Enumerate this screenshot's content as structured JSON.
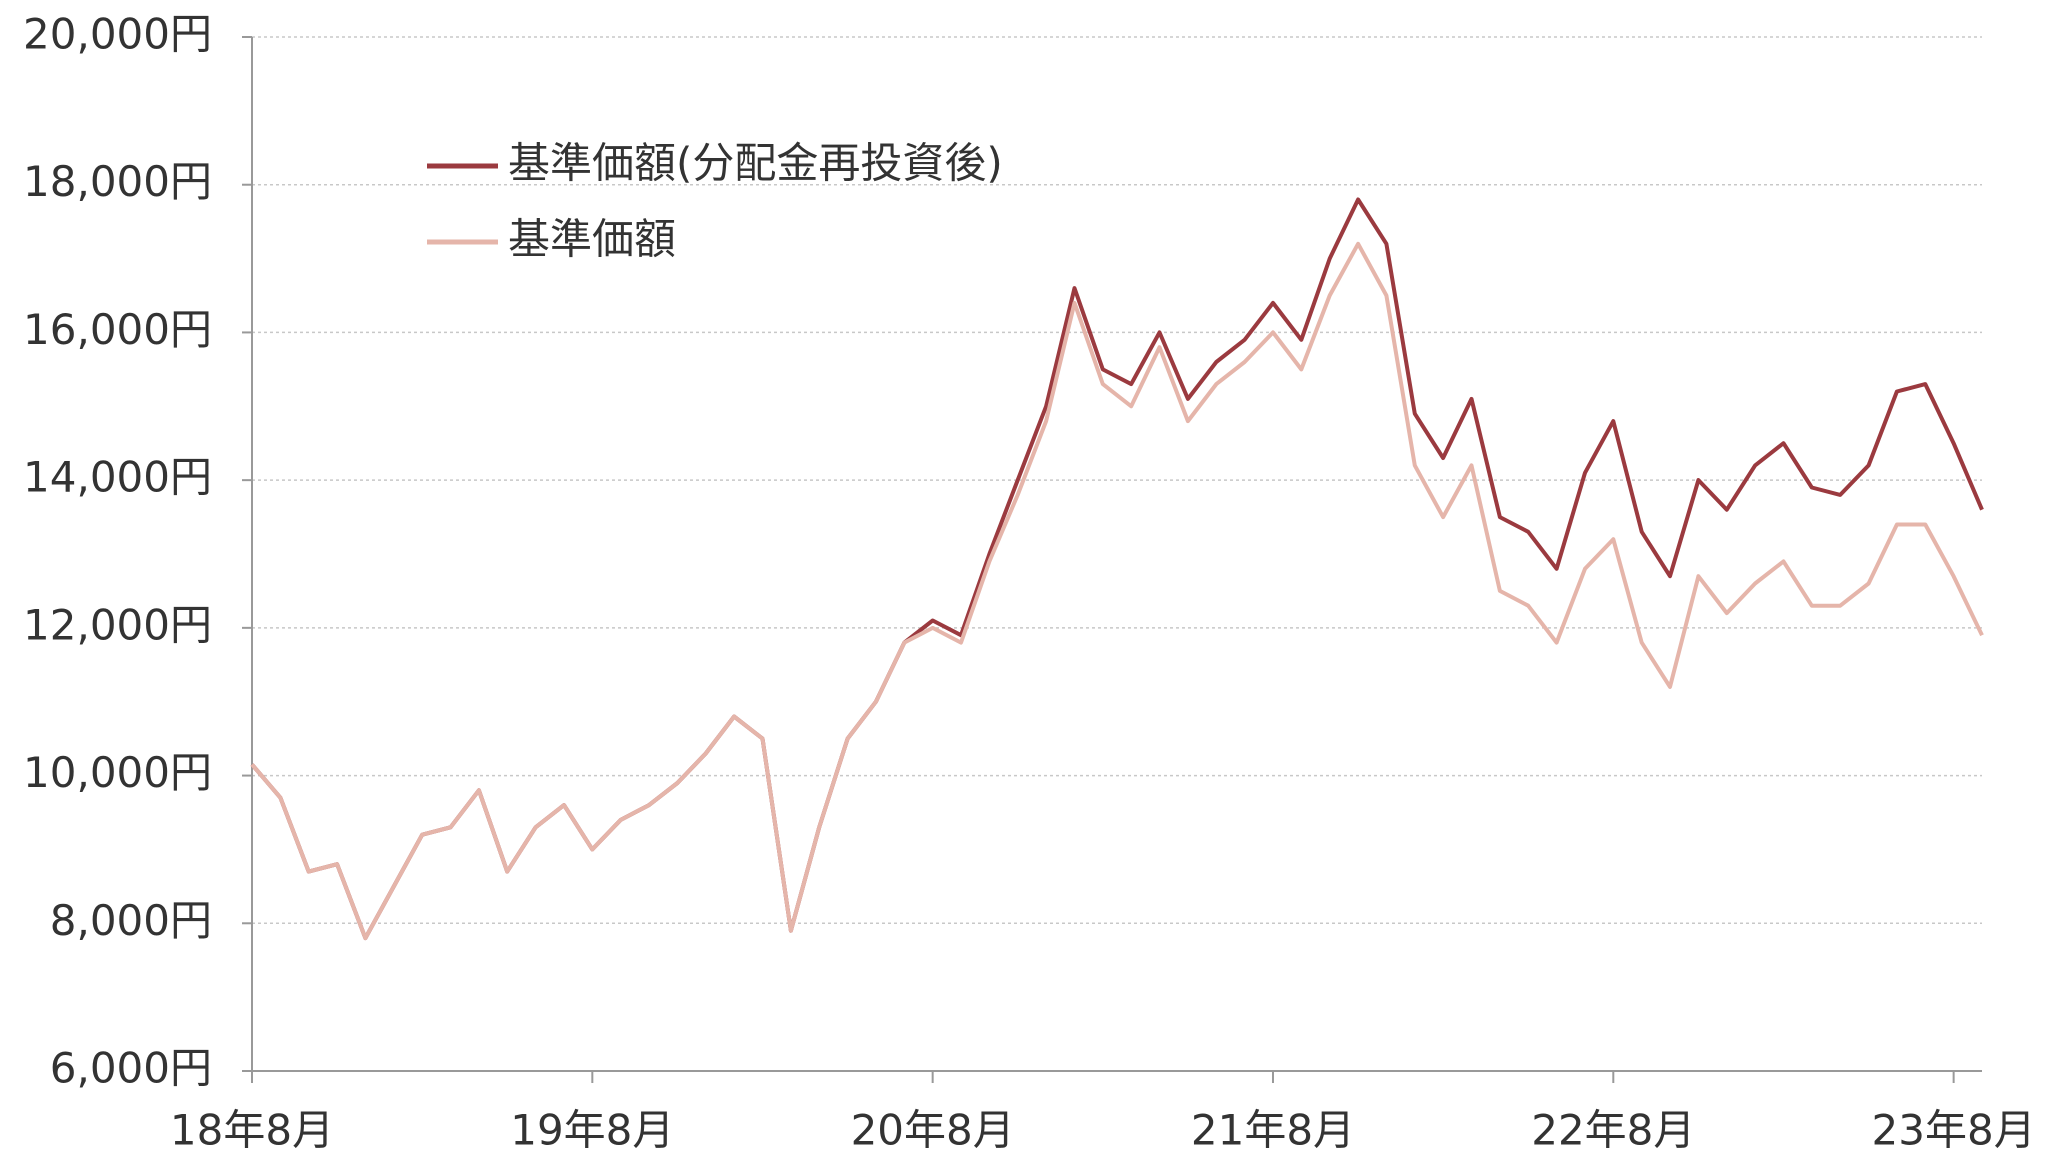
{
  "chart_data": {
    "type": "line",
    "x": [
      "2018-08",
      "2018-09",
      "2018-10",
      "2018-11",
      "2018-12",
      "2019-01",
      "2019-02",
      "2019-03",
      "2019-04",
      "2019-05",
      "2019-06",
      "2019-07",
      "2019-08",
      "2019-09",
      "2019-10",
      "2019-11",
      "2019-12",
      "2020-01",
      "2020-02",
      "2020-03",
      "2020-04",
      "2020-05",
      "2020-06",
      "2020-07",
      "2020-08",
      "2020-09",
      "2020-10",
      "2020-11",
      "2020-12",
      "2021-01",
      "2021-02",
      "2021-03",
      "2021-04",
      "2021-05",
      "2021-06",
      "2021-07",
      "2021-08",
      "2021-09",
      "2021-10",
      "2021-11",
      "2021-12",
      "2022-01",
      "2022-02",
      "2022-03",
      "2022-04",
      "2022-05",
      "2022-06",
      "2022-07",
      "2022-08",
      "2022-09",
      "2022-10",
      "2022-11",
      "2022-12",
      "2023-01",
      "2023-02",
      "2023-03",
      "2023-04",
      "2023-05",
      "2023-06",
      "2023-07",
      "2023-08",
      "2023-09"
    ],
    "series": [
      {
        "name": "基準価額(分配金再投資後)",
        "color": "#9b3a3f",
        "values": [
          10150,
          9700,
          8700,
          8800,
          7800,
          8500,
          9200,
          9300,
          9800,
          8700,
          9300,
          9600,
          9000,
          9400,
          9600,
          9900,
          10300,
          10800,
          10500,
          7900,
          9300,
          10500,
          11000,
          11800,
          12100,
          11900,
          13000,
          14000,
          15000,
          16600,
          15500,
          15300,
          16000,
          15100,
          15600,
          15900,
          16400,
          15900,
          17000,
          17800,
          17200,
          14900,
          14300,
          15100,
          13500,
          13300,
          12800,
          14100,
          14800,
          13300,
          12700,
          14000,
          13600,
          14200,
          14500,
          13900,
          13800,
          14200,
          15200,
          15300,
          14500,
          13600
        ]
      },
      {
        "name": "基準価額",
        "color": "#e5b5aa",
        "values": [
          10150,
          9700,
          8700,
          8800,
          7800,
          8500,
          9200,
          9300,
          9800,
          8700,
          9300,
          9600,
          9000,
          9400,
          9600,
          9900,
          10300,
          10800,
          10500,
          7900,
          9300,
          10500,
          11000,
          11800,
          12000,
          11800,
          12900,
          13800,
          14800,
          16400,
          15300,
          15000,
          15800,
          14800,
          15300,
          15600,
          16000,
          15500,
          16500,
          17200,
          16500,
          14200,
          13500,
          14200,
          12500,
          12300,
          11800,
          12800,
          13200,
          11800,
          11200,
          12700,
          12200,
          12600,
          12900,
          12300,
          12300,
          12600,
          13400,
          13400,
          12700,
          11900
        ]
      }
    ],
    "ylim": [
      6000,
      20000
    ],
    "yticks": [
      {
        "value": 6000,
        "label": "6,000円"
      },
      {
        "value": 8000,
        "label": "8,000円"
      },
      {
        "value": 10000,
        "label": "10,000円"
      },
      {
        "value": 12000,
        "label": "12,000円"
      },
      {
        "value": 14000,
        "label": "14,000円"
      },
      {
        "value": 16000,
        "label": "16,000円"
      },
      {
        "value": 18000,
        "label": "18,000円"
      },
      {
        "value": 20000,
        "label": "20,000円"
      }
    ],
    "xticks": [
      {
        "value": "2018-08",
        "label": "18年8月"
      },
      {
        "value": "2019-08",
        "label": "19年8月"
      },
      {
        "value": "2020-08",
        "label": "20年8月"
      },
      {
        "value": "2021-08",
        "label": "21年8月"
      },
      {
        "value": "2022-08",
        "label": "22年8月"
      },
      {
        "value": "2023-08",
        "label": "23年8月"
      }
    ],
    "grid": true
  }
}
